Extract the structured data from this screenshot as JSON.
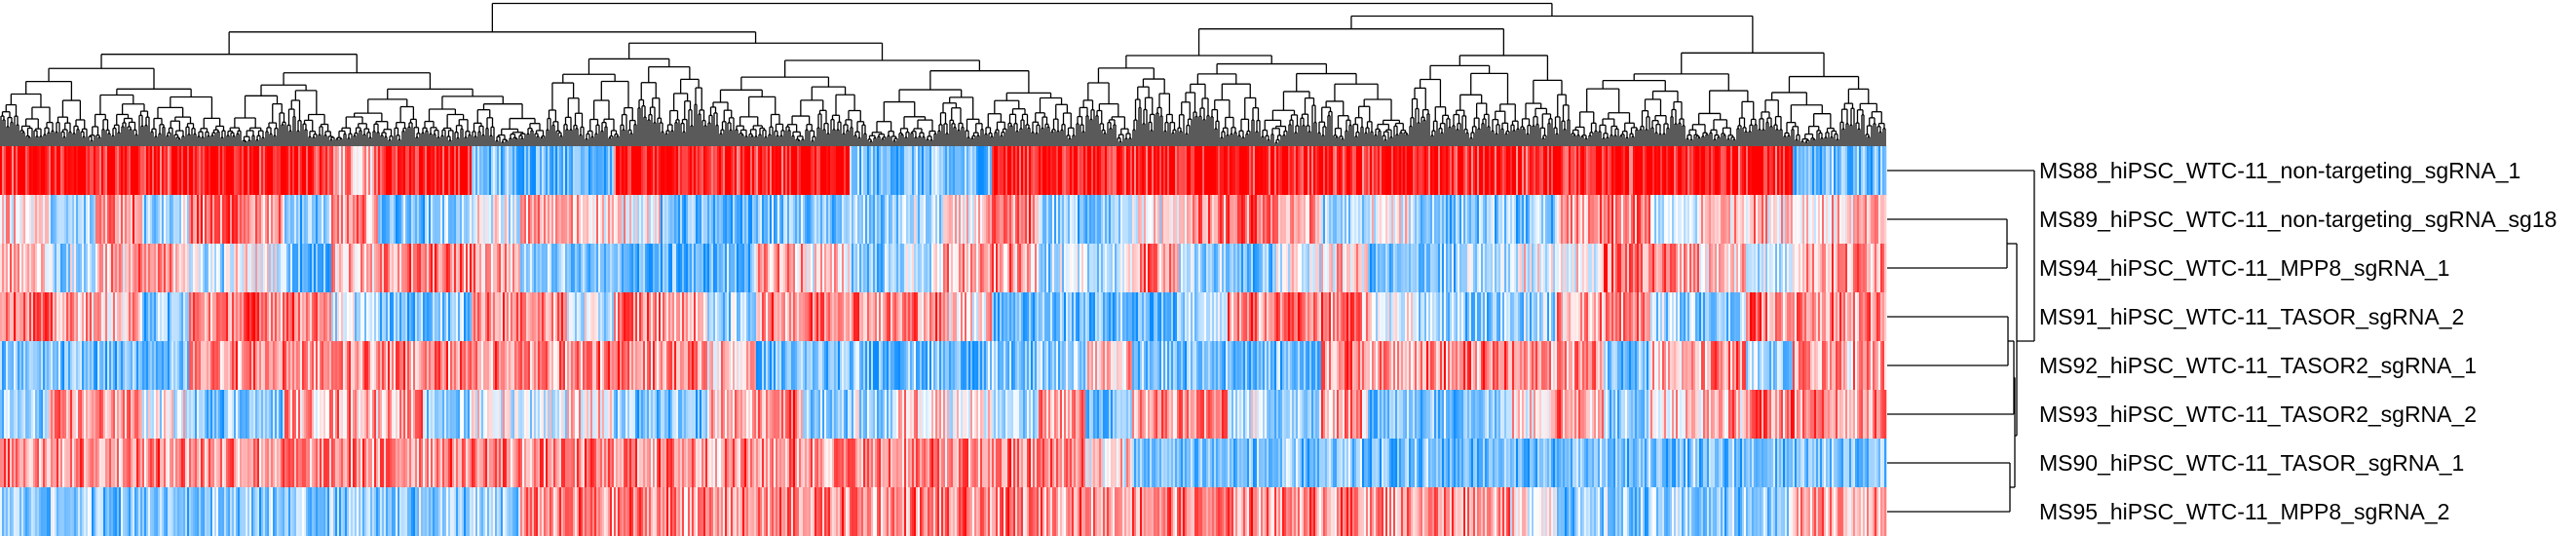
{
  "chart_data": {
    "type": "heatmap",
    "title": "",
    "row_labels": [
      "MS88_hiPSC_WTC-11_non-targeting_sgRNA_1",
      "MS89_hiPSC_WTC-11_non-targeting_sgRNA_sg18",
      "MS94_hiPSC_WTC-11_MPP8_sgRNA_1",
      "MS91_hiPSC_WTC-11_TASOR_sgRNA_2",
      "MS92_hiPSC_WTC-11_TASOR2_sgRNA_1",
      "MS93_hiPSC_WTC-11_TASOR2_sgRNA_2",
      "MS90_hiPSC_WTC-11_TASOR_sgRNA_1",
      "MS95_hiPSC_WTC-11_MPP8_sgRNA_2"
    ],
    "row_dendrogram": true,
    "column_dendrogram": true,
    "value_range": [
      -1,
      1
    ],
    "colors": {
      "low": "#0a8cff",
      "mid": "#ffffff",
      "high": "#ff0000"
    },
    "column_block_profiles": [
      [
        0.8,
        0.8,
        0.8,
        0.8,
        0.8,
        0.8,
        0.8,
        0.3,
        0.8,
        0.8,
        -0.5,
        -0.5,
        -0.5,
        0.8,
        0.8,
        0.8,
        0.8,
        0.8,
        -0.5,
        -0.5,
        -0.5,
        0.8,
        0.8,
        0.8,
        0.8,
        0.8,
        0.8,
        0.8,
        0.8,
        0.8,
        0.8,
        0.8,
        0.8,
        0.8,
        0.8,
        0.8,
        0.8,
        0.8,
        -0.5,
        -0.5
      ],
      [
        0.1,
        -0.4,
        0.5,
        -0.3,
        0.5,
        0.4,
        -0.4,
        0.3,
        -0.5,
        -0.4,
        -0.1,
        0.3,
        0.2,
        0,
        -0.5,
        -0.6,
        -0.4,
        -0.5,
        -0.4,
        -0.3,
        0.1,
        0.4,
        -0.4,
        -0.4,
        0,
        0.3,
        0.5,
        0.3,
        -0.4,
        0,
        -0.4,
        -0.4,
        -0.4,
        0.3,
        0.4,
        -0.2,
        0.3,
        0.2,
        0.1,
        0.2
      ],
      [
        0.2,
        -0.3,
        0.3,
        0.3,
        -0.2,
        0,
        -0.5,
        0.2,
        0.4,
        0.4,
        0.3,
        -0.3,
        -0.5,
        -0.6,
        -0.6,
        -0.5,
        0.3,
        0.1,
        -0.4,
        -0.2,
        0.3,
        0.3,
        -0.3,
        -0.2,
        0.4,
        -0.4,
        -0.5,
        -0.1,
        0.1,
        -0.5,
        -0.4,
        -0.3,
        0,
        0,
        0.5,
        0.4,
        0.2,
        -0.2,
        0.3,
        0.4
      ],
      [
        0.5,
        0.3,
        0.2,
        -0.4,
        0.4,
        0.5,
        0.5,
        -0.2,
        -0.5,
        -0.4,
        0.4,
        0.4,
        -0.2,
        0.4,
        0.3,
        -0.3,
        0.4,
        0.5,
        0.4,
        0.4,
        0.2,
        -0.5,
        -0.5,
        -0.5,
        -0.6,
        -0.3,
        0.4,
        0.5,
        0.4,
        0,
        -0.3,
        -0.4,
        -0.3,
        0.3,
        0.4,
        -0.3,
        -0.4,
        0.4,
        0.4,
        0.4
      ],
      [
        -0.5,
        -0.5,
        -0.5,
        -0.5,
        0.4,
        0.4,
        0.4,
        0.4,
        0.4,
        0.4,
        0.4,
        0.4,
        0.4,
        0.4,
        0.4,
        0.2,
        -0.5,
        -0.5,
        -0.5,
        -0.5,
        -0.5,
        -0.5,
        -0.4,
        0.2,
        -0.5,
        -0.5,
        -0.5,
        -0.5,
        0.4,
        0.4,
        0.4,
        0.4,
        0.4,
        0.4,
        -0.4,
        0.2,
        0.4,
        -0.4,
        0.3,
        0.3
      ],
      [
        -0.4,
        0.3,
        0.4,
        -0.1,
        -0.4,
        -0.4,
        0.3,
        0.3,
        0.3,
        -0.4,
        0,
        -0.1,
        0.1,
        -0.5,
        -0.5,
        0.3,
        0.4,
        -0.4,
        -0.3,
        0.2,
        0.1,
        -0.3,
        0.3,
        -0.5,
        0.3,
        0.4,
        -0.2,
        -0.4,
        0.3,
        -0.4,
        -0.4,
        -0.3,
        0.2,
        0.4,
        -0.4,
        0.1,
        0.3,
        0.4,
        0.4,
        0.4
      ],
      [
        0.4,
        0.4,
        0.4,
        0.4,
        0.4,
        0.4,
        0.4,
        0.4,
        0.4,
        0.4,
        0.4,
        0.4,
        0.4,
        0.4,
        0.4,
        0.4,
        0.4,
        0.4,
        0.4,
        0.4,
        0.4,
        0.4,
        0.4,
        0.1,
        -0.5,
        -0.5,
        -0.5,
        -0.5,
        -0.5,
        -0.5,
        -0.5,
        -0.5,
        -0.5,
        -0.5,
        -0.5,
        -0.5,
        -0.5,
        -0.5,
        -0.5,
        -0.5
      ],
      [
        -0.4,
        -0.4,
        -0.4,
        -0.4,
        -0.4,
        -0.4,
        -0.4,
        -0.4,
        -0.4,
        -0.4,
        -0.4,
        0.4,
        0.4,
        0.4,
        0.4,
        0.4,
        0.4,
        0.4,
        0.4,
        0.4,
        0.4,
        0.4,
        0.4,
        0.4,
        0.4,
        0.4,
        0.4,
        0.4,
        0.4,
        0.4,
        0.4,
        0.4,
        0.1,
        -0.4,
        -0.4,
        -0.4,
        -0.4,
        -0.4,
        0.3,
        0.3
      ]
    ]
  }
}
